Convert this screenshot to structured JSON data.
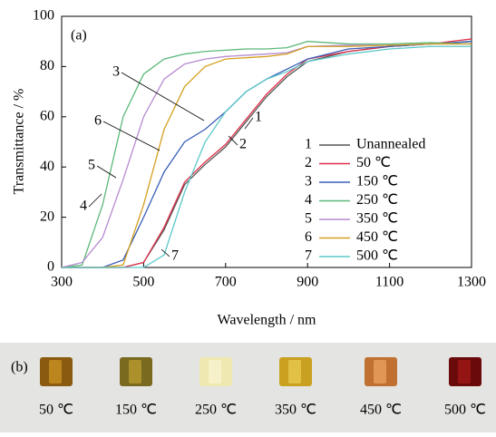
{
  "chart_data": {
    "type": "line",
    "panel_label": "(a)",
    "x_label": "Wavelength / nm",
    "y_label": "Transmittance / %",
    "x": [
      300,
      350,
      400,
      450,
      500,
      550,
      600,
      650,
      700,
      750,
      800,
      850,
      900,
      1000,
      1100,
      1200,
      1300
    ],
    "series": [
      {
        "label": "1",
        "name": "Unannealed",
        "color": "#555555",
        "values": [
          0,
          0,
          0,
          0,
          2,
          15,
          33,
          41,
          48,
          58,
          68,
          76,
          82,
          86,
          88,
          89,
          90
        ]
      },
      {
        "label": "2",
        "name": "50 ℃",
        "color": "#e0304a",
        "values": [
          0,
          0,
          0,
          0,
          2,
          16,
          34,
          42,
          49,
          59,
          69,
          77,
          83,
          86,
          88,
          89,
          91
        ]
      },
      {
        "label": "3",
        "name": "150 ℃",
        "color": "#3a5fb8",
        "values": [
          0,
          0,
          0,
          3,
          20,
          38,
          50,
          55,
          62,
          70,
          75,
          79,
          83,
          87,
          88,
          89,
          90
        ]
      },
      {
        "label": "4",
        "name": "250 ℃",
        "color": "#5cb87a",
        "values": [
          0,
          1,
          25,
          60,
          77,
          83,
          85,
          86,
          86.5,
          87,
          87,
          87.5,
          90,
          89,
          89,
          89.5,
          89
        ]
      },
      {
        "label": "5",
        "name": "350 ℃",
        "color": "#b58ad0",
        "values": [
          0,
          2,
          12,
          35,
          60,
          75,
          81,
          83,
          84,
          84.5,
          85,
          85.5,
          88,
          88.5,
          88.5,
          89,
          89
        ]
      },
      {
        "label": "6",
        "name": "450 ℃",
        "color": "#d4a020",
        "values": [
          0,
          0,
          0,
          1,
          25,
          55,
          72,
          80,
          83,
          83.5,
          84,
          85,
          88,
          88,
          88.5,
          89,
          89
        ]
      },
      {
        "label": "7",
        "name": "500 ℃",
        "color": "#5cc8c8",
        "values": [
          0,
          0,
          0,
          0,
          0,
          5,
          30,
          50,
          62,
          70,
          75,
          78,
          82,
          85,
          87,
          88,
          88
        ]
      }
    ],
    "xlim": [
      300,
      1300
    ],
    "xticks": [
      300,
      500,
      700,
      900,
      1100,
      1300
    ],
    "ylim": [
      0,
      100
    ],
    "yticks": [
      0,
      20,
      40,
      60,
      80,
      100
    ]
  },
  "photo": {
    "panel_label": "(b)",
    "captions": [
      "50 ℃",
      "150 ℃",
      "250 ℃",
      "350 ℃",
      "450 ℃",
      "500 ℃"
    ]
  }
}
